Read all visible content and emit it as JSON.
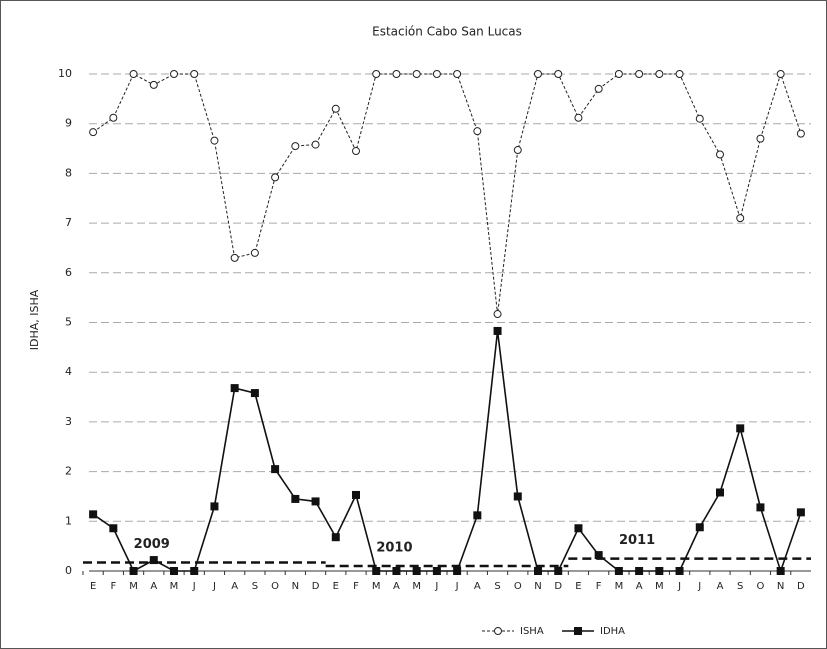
{
  "chart_data": {
    "type": "line",
    "title": "Estación Cabo San Lucas",
    "y_label": "IDHA, ISHA",
    "categories": [
      "E",
      "F",
      "M",
      "A",
      "M",
      "J",
      "J",
      "A",
      "S",
      "O",
      "N",
      "D",
      "E",
      "F",
      "M",
      "A",
      "M",
      "J",
      "J",
      "A",
      "S",
      "O",
      "N",
      "D",
      "E",
      "F",
      "M",
      "A",
      "M",
      "J",
      "J",
      "A",
      "S",
      "O",
      "N",
      "D"
    ],
    "series": [
      {
        "name": "ISHA",
        "color": "#222222",
        "values": [
          8.83,
          9.12,
          10,
          9.78,
          10,
          10,
          8.66,
          6.3,
          6.4,
          7.92,
          8.55,
          8.58,
          9.3,
          8.45,
          10,
          10,
          10,
          10,
          10,
          8.85,
          5.17,
          8.47,
          10,
          10,
          9.12,
          9.7,
          10,
          10,
          10,
          10,
          9.1,
          8.38,
          7.1,
          8.7,
          10,
          8.8
        ]
      },
      {
        "name": "IDHA",
        "color": "#111111",
        "values": [
          1.14,
          0.86,
          0,
          0.22,
          0,
          0,
          1.3,
          3.68,
          3.58,
          2.05,
          1.45,
          1.4,
          0.68,
          1.53,
          0,
          0,
          0,
          0,
          0,
          1.12,
          4.83,
          1.5,
          0,
          0,
          0.86,
          0.32,
          0,
          0,
          0,
          0,
          0.88,
          1.58,
          2.87,
          1.28,
          0,
          1.18
        ]
      }
    ],
    "annual_means": [
      {
        "label": "2009",
        "value": 0.17
      },
      {
        "label": "2010",
        "value": 0.1
      },
      {
        "label": "2011",
        "value": 0.25
      }
    ],
    "ylim": [
      0,
      10
    ],
    "yticks": [
      0,
      1,
      2,
      3,
      4,
      5,
      6,
      7,
      8,
      9,
      10
    ],
    "grid": true
  }
}
